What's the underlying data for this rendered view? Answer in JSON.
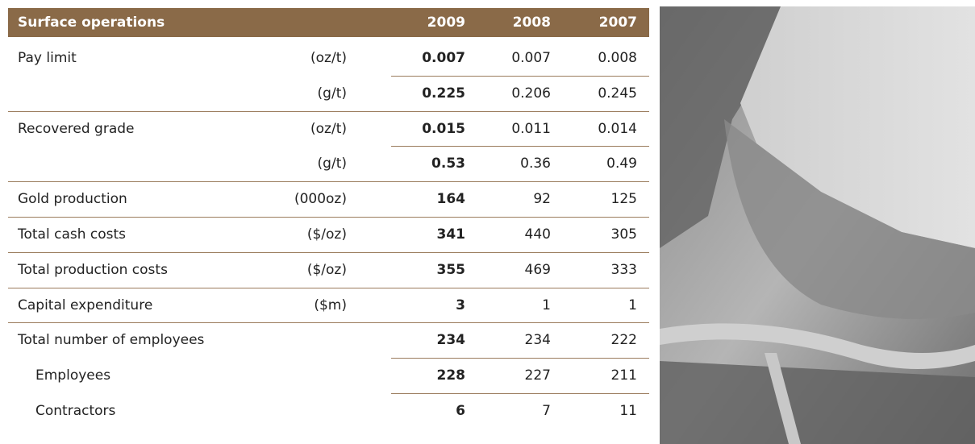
{
  "table": {
    "header": [
      "Surface operations",
      "2009",
      "2008",
      "2007"
    ],
    "rows": [
      {
        "label": "Pay limit",
        "unit": "(oz/t)",
        "values": [
          0.007,
          0.007,
          0.008
        ]
      },
      {
        "unit": "(g/t)",
        "values": [
          0.225,
          0.206,
          0.245
        ]
      },
      {
        "label": "Recovered grade",
        "unit": "(oz/t)",
        "values": [
          0.015,
          0.011,
          0.014
        ]
      },
      {
        "unit": "(g/t)",
        "values": [
          0.53,
          0.36,
          0.49
        ]
      },
      {
        "label": "Gold production",
        "unit": "(000oz)",
        "values": [
          164,
          92,
          125
        ]
      },
      {
        "label": "Total cash costs",
        "unit": "($/oz)",
        "values": [
          341,
          440,
          305
        ]
      },
      {
        "label": "Total production costs",
        "unit": "($/oz)",
        "values": [
          355,
          469,
          333
        ]
      },
      {
        "label": "Capital expenditure",
        "unit": "($m)",
        "values": [
          3,
          1,
          1
        ]
      },
      {
        "label": "Total number of employees",
        "values": [
          234,
          234,
          222
        ]
      },
      {
        "label": "Employees",
        "indent": true,
        "values": [
          228,
          227,
          211
        ]
      },
      {
        "label": "Contractors",
        "indent": true,
        "values": [
          6,
          7,
          11
        ]
      }
    ]
  }
}
